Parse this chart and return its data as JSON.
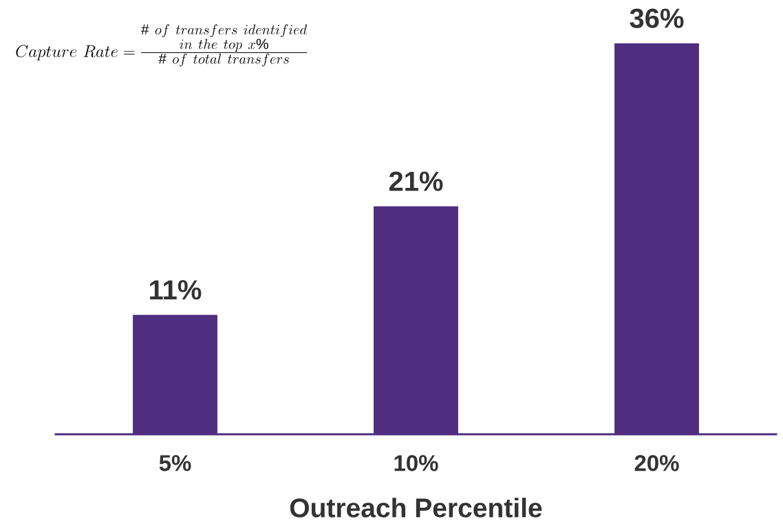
{
  "chart_data": {
    "type": "bar",
    "categories": [
      "5%",
      "10%",
      "20%"
    ],
    "values": [
      11,
      21,
      36
    ],
    "color": "#4f2d7f",
    "value_labels": [
      "11%",
      "21%",
      "36%"
    ],
    "xlabel": "Outreach Percentile",
    "annotations": [
      "Capture\\ Rate=\\frac{\\substack{\\#\\ of\\ transfers\\ identified\\\\ in\\ the\\ top\\ x\\%}}{\\#\\ of\\ total\\ transfers}"
    ]
  }
}
